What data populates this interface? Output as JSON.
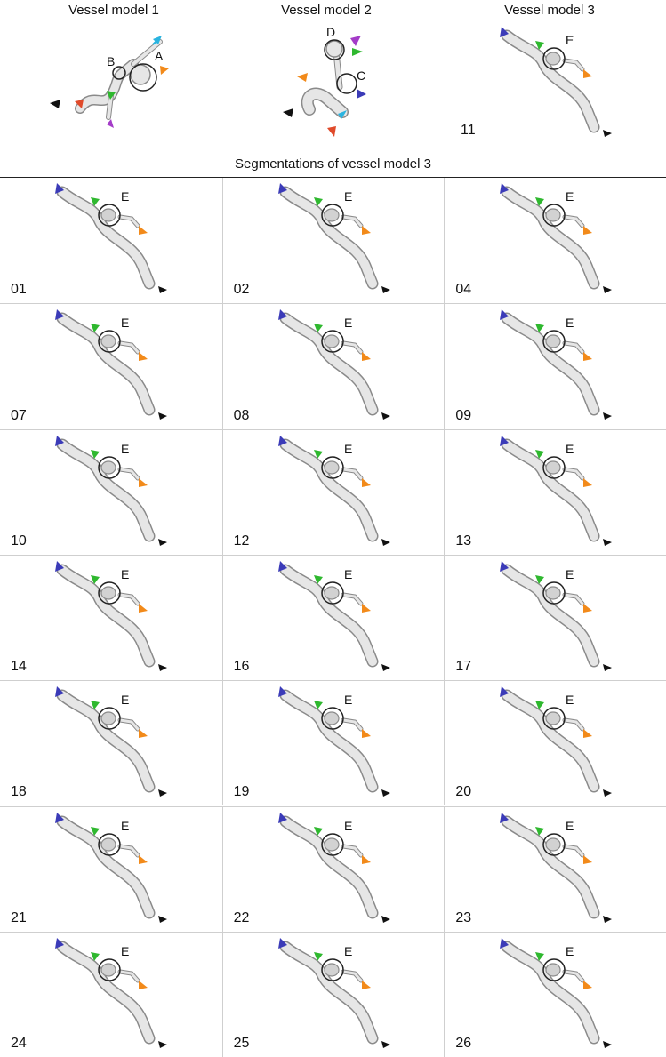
{
  "header": {
    "model1_title": "Vessel model 1",
    "model2_title": "Vessel model 2",
    "model3_title": "Vessel model 3",
    "model3_number": "11",
    "segmentations_title": "Segmentations of vessel model 3"
  },
  "labels": {
    "A": "A",
    "B": "B",
    "C": "C",
    "D": "D",
    "E": "E"
  },
  "colors": {
    "blue": "#3b3bb8",
    "green": "#2fb82f",
    "orange": "#f28a1a",
    "black": "#111111",
    "cyan": "#2ab4e0",
    "purple": "#a43cc8",
    "red": "#e04a2a",
    "vessel_fill": "#e6e6e6",
    "vessel_stroke": "#8a8a8a"
  },
  "segmentations": [
    "01",
    "02",
    "04",
    "07",
    "08",
    "09",
    "10",
    "12",
    "13",
    "14",
    "16",
    "17",
    "18",
    "19",
    "20",
    "21",
    "22",
    "23",
    "24",
    "25",
    "26"
  ]
}
